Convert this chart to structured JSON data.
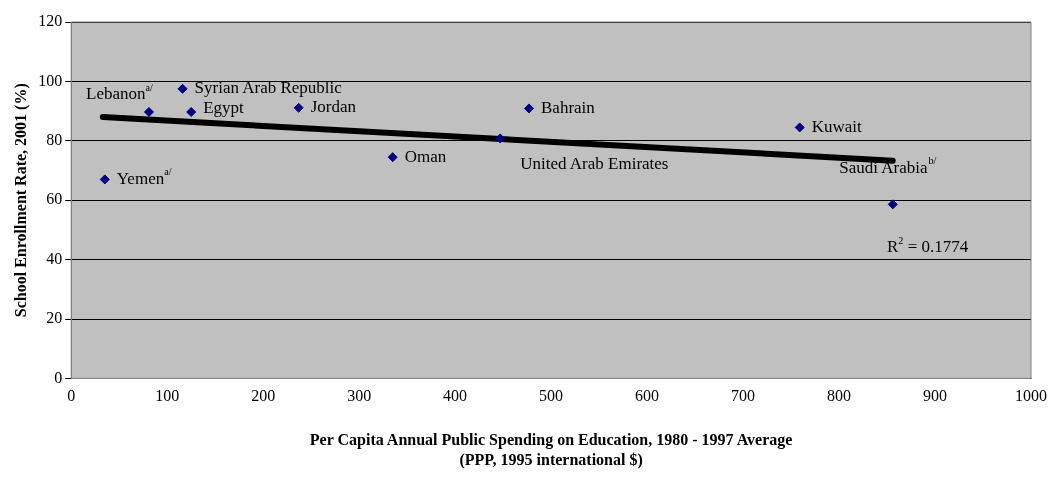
{
  "chart_data": {
    "type": "scatter",
    "xlabel": "Per Capita Annual Public Spending on Education, 1980 - 1997 Average\n(PPP, 1995 international $)",
    "ylabel": "School Enrollment Rate, 2001 (%)",
    "series": [
      {
        "color": "#000080",
        "marker": "diamond",
        "x": [
          35,
          81,
          116,
          125,
          237,
          335,
          447,
          477,
          759,
          856
        ],
        "values": [
          67,
          89.7,
          97.5,
          89.7,
          91.1,
          74.5,
          80.8,
          90.9,
          84.5,
          58.6
        ]
      },
      {
        "type": "line",
        "color": "#000000",
        "marker": "none",
        "x": [
          33,
          856
        ],
        "values": [
          88,
          73.3
        ]
      }
    ],
    "xlim": [
      0,
      1000
    ],
    "xticks": [
      0,
      100,
      200,
      300,
      400,
      500,
      600,
      700,
      800,
      900,
      1000
    ],
    "ylim": [
      0,
      120
    ],
    "yticks": [
      0,
      20,
      40,
      60,
      80,
      100,
      120
    ],
    "grid": "y",
    "legend": false,
    "annotations": [
      {
        "text": "Yemen$^{a/}$",
        "x": 35,
        "y": 67
      },
      {
        "text": "Lebanon$^{a/}$",
        "x": 81,
        "y": 89.7
      },
      {
        "text": "Syrian Arab Republic",
        "x": 116,
        "y": 97.5
      },
      {
        "text": "Egypt",
        "x": 125,
        "y": 89.7
      },
      {
        "text": "Jordan",
        "x": 237,
        "y": 91.1
      },
      {
        "text": "Oman",
        "x": 335,
        "y": 74.5
      },
      {
        "text": "United Arab Emirates",
        "x": 447,
        "y": 80.8
      },
      {
        "text": "Bahrain",
        "x": 477,
        "y": 90.9
      },
      {
        "text": "Kuwait",
        "x": 759,
        "y": 84.5
      },
      {
        "text": "Saudi Arabia$^{b/}$",
        "x": 856,
        "y": 58.6
      },
      "R$^{2}$ = 0.1774"
    ]
  }
}
